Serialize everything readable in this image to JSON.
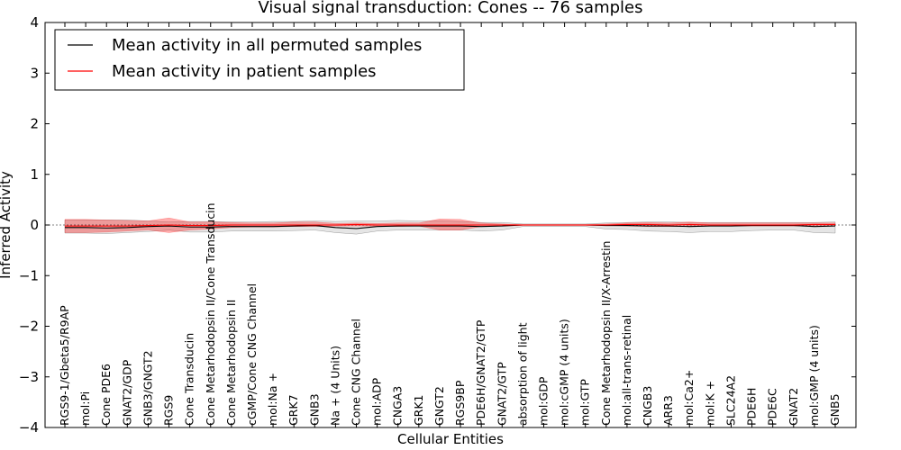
{
  "chart_data": {
    "type": "line",
    "title": "Visual signal transduction: Cones -- 76 samples",
    "xlabel": "Cellular Entities",
    "ylabel": "Inferred Activity",
    "ylim": [
      -4,
      4
    ],
    "yticks": [
      "−4",
      "−3",
      "−2",
      "−1",
      "0",
      "1",
      "2",
      "3",
      "4"
    ],
    "legend_position": "top-left",
    "categories": [
      "RGS9-1/Gbeta5/R9AP",
      "mol:Pi",
      "Cone PDE6",
      "GNAT2/GDP",
      "GNB3/GNGT2",
      "RGS9",
      "Cone Transducin",
      "Cone Metarhodopsin II/Cone Transducin",
      "Cone Metarhodopsin II",
      "cGMP/Cone CNG Channel",
      "mol:Na +",
      "GRK7",
      "GNB3",
      "Na + (4 Units)",
      "Cone CNG Channel",
      "mol:ADP",
      "CNGA3",
      "GRK1",
      "GNGT2",
      "RGS9BP",
      "PDE6H/GNAT2/GTP",
      "GNAT2/GTP",
      "absorption of light",
      "mol:GDP",
      "mol:cGMP (4 units)",
      "mol:GTP",
      "Cone Metarhodopsin II/X-Arrestin",
      "mol:all-trans-retinal",
      "CNGB3",
      "ARR3",
      "mol:Ca2+",
      "mol:K +",
      "SLC24A2",
      "PDE6H",
      "PDE6C",
      "GNAT2",
      "mol:GMP (4 units)",
      "GNB5"
    ],
    "series": [
      {
        "name": "Mean activity in all permuted samples",
        "color": "#000000",
        "values": [
          -0.05,
          -0.05,
          -0.06,
          -0.05,
          -0.03,
          -0.02,
          -0.04,
          -0.04,
          -0.03,
          -0.03,
          -0.03,
          -0.02,
          -0.01,
          -0.05,
          -0.07,
          -0.03,
          -0.02,
          -0.02,
          -0.02,
          -0.02,
          -0.03,
          -0.02,
          0,
          0,
          0,
          0,
          -0.01,
          -0.01,
          -0.02,
          -0.02,
          -0.03,
          -0.02,
          -0.02,
          -0.01,
          -0.01,
          -0.01,
          -0.03,
          -0.02
        ],
        "band_lower": [
          -0.16,
          -0.16,
          -0.17,
          -0.15,
          -0.13,
          -0.1,
          -0.14,
          -0.14,
          -0.12,
          -0.12,
          -0.12,
          -0.11,
          -0.1,
          -0.15,
          -0.18,
          -0.12,
          -0.1,
          -0.1,
          -0.1,
          -0.1,
          -0.12,
          -0.1,
          -0.03,
          -0.03,
          -0.03,
          -0.03,
          -0.08,
          -0.09,
          -0.12,
          -0.13,
          -0.15,
          -0.13,
          -0.13,
          -0.11,
          -0.1,
          -0.1,
          -0.15,
          -0.16
        ],
        "band_upper": [
          0.1,
          0.1,
          0.1,
          0.1,
          0.08,
          0.06,
          0.07,
          0.07,
          0.06,
          0.06,
          0.07,
          0.07,
          0.08,
          0.07,
          0.08,
          0.08,
          0.09,
          0.08,
          0.08,
          0.07,
          0.05,
          0.05,
          0.02,
          0.02,
          0.02,
          0.02,
          0.04,
          0.05,
          0.06,
          0.06,
          0.05,
          0.05,
          0.05,
          0.05,
          0.05,
          0.05,
          0.05,
          0.06
        ]
      },
      {
        "name": "Mean activity in patient samples",
        "color": "#ff0000",
        "values": [
          -0.02,
          -0.02,
          -0.02,
          -0.02,
          -0.01,
          0,
          -0.01,
          -0.01,
          0,
          0,
          0,
          0,
          0,
          0,
          0.01,
          0,
          0,
          0,
          0,
          0,
          0,
          0,
          0,
          0,
          0,
          0,
          0,
          0.01,
          0.01,
          0,
          0.01,
          0,
          0,
          0,
          0,
          0,
          0.01,
          0.01
        ],
        "band_lower": [
          -0.15,
          -0.15,
          -0.14,
          -0.12,
          -0.1,
          -0.15,
          -0.1,
          -0.08,
          -0.05,
          -0.04,
          -0.04,
          -0.03,
          -0.03,
          -0.02,
          -0.02,
          -0.02,
          -0.03,
          -0.02,
          -0.1,
          -0.1,
          -0.03,
          -0.02,
          -0.01,
          -0.01,
          -0.01,
          -0.01,
          -0.01,
          -0.02,
          -0.03,
          -0.03,
          -0.03,
          -0.02,
          -0.02,
          -0.02,
          -0.02,
          -0.02,
          -0.02,
          -0.02
        ],
        "band_upper": [
          0.11,
          0.11,
          0.1,
          0.09,
          0.08,
          0.14,
          0.06,
          0.06,
          0.05,
          0.04,
          0.04,
          0.06,
          0.06,
          0.03,
          0.04,
          0.03,
          0.04,
          0.04,
          0.12,
          0.11,
          0.04,
          0.02,
          0.01,
          0.01,
          0.01,
          0.01,
          0.02,
          0.04,
          0.05,
          0.04,
          0.06,
          0.04,
          0.04,
          0.04,
          0.04,
          0.04,
          0.04,
          0.04
        ]
      }
    ]
  }
}
